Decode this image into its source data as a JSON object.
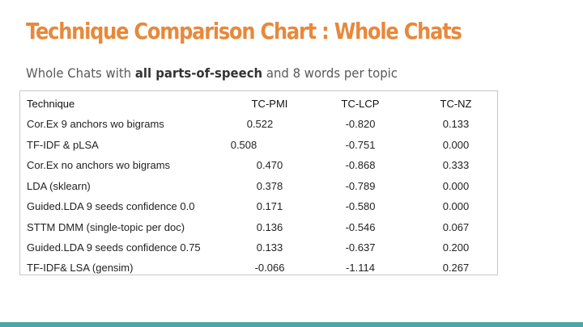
{
  "title": "Technique Comparison Chart : Whole Chats",
  "subtitle": {
    "pre": "Whole Chats with ",
    "bold": "all parts-of-speech",
    "post": " and 8 words per topic"
  },
  "table": {
    "headers": [
      "Technique",
      "TC-PMI",
      "TC-LCP",
      "TC-NZ"
    ],
    "rows": [
      [
        "Cor.Ex 9 anchors wo bigrams",
        "0.522",
        "-0.820",
        "0.133"
      ],
      [
        "TF-IDF & pLSA",
        "0.508",
        "-0.751",
        "0.000"
      ],
      [
        "Cor.Ex no anchors wo bigrams",
        "0.470",
        "-0.868",
        "0.333"
      ],
      [
        "LDA (sklearn)",
        "0.378",
        "-0.789",
        "0.000"
      ],
      [
        "Guided.LDA 9 seeds confidence 0.0",
        "0.171",
        "-0.580",
        "0.000"
      ],
      [
        "STTM DMM (single-topic per doc)",
        "0.136",
        "-0.546",
        "0.067"
      ],
      [
        "Guided.LDA 9 seeds confidence 0.75",
        "0.133",
        "-0.637",
        "0.200"
      ],
      [
        "TF-IDF& LSA (gensim)",
        "-0.066",
        "-1.114",
        "0.267"
      ]
    ]
  },
  "colors": {
    "title": "#e8883a",
    "accent_bar": "#4aa6a6"
  }
}
